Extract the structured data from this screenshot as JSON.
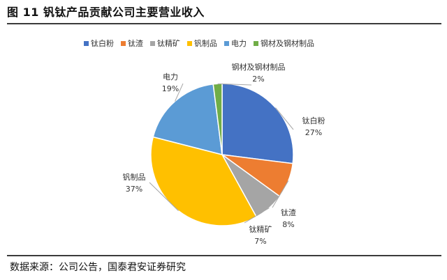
{
  "figure": {
    "title": "图 11 钒钛产品贡献公司主要营业收入",
    "source": "数据来源：公司公告，国泰君安证券研究"
  },
  "chart_data": {
    "type": "pie",
    "categories": [
      "钛白粉",
      "钛渣",
      "钛精矿",
      "钒制品",
      "电力",
      "钢材及钢材制品"
    ],
    "values": [
      27,
      8,
      7,
      37,
      19,
      2
    ],
    "percent_labels": [
      "27%",
      "8%",
      "7%",
      "37%",
      "19%",
      "2%"
    ],
    "colors": [
      "#4472C4",
      "#ED7D31",
      "#A5A5A5",
      "#FFC000",
      "#5B9BD5",
      "#70AD47"
    ],
    "legend_position": "top",
    "start_angle_deg": 0,
    "direction": "clockwise"
  }
}
